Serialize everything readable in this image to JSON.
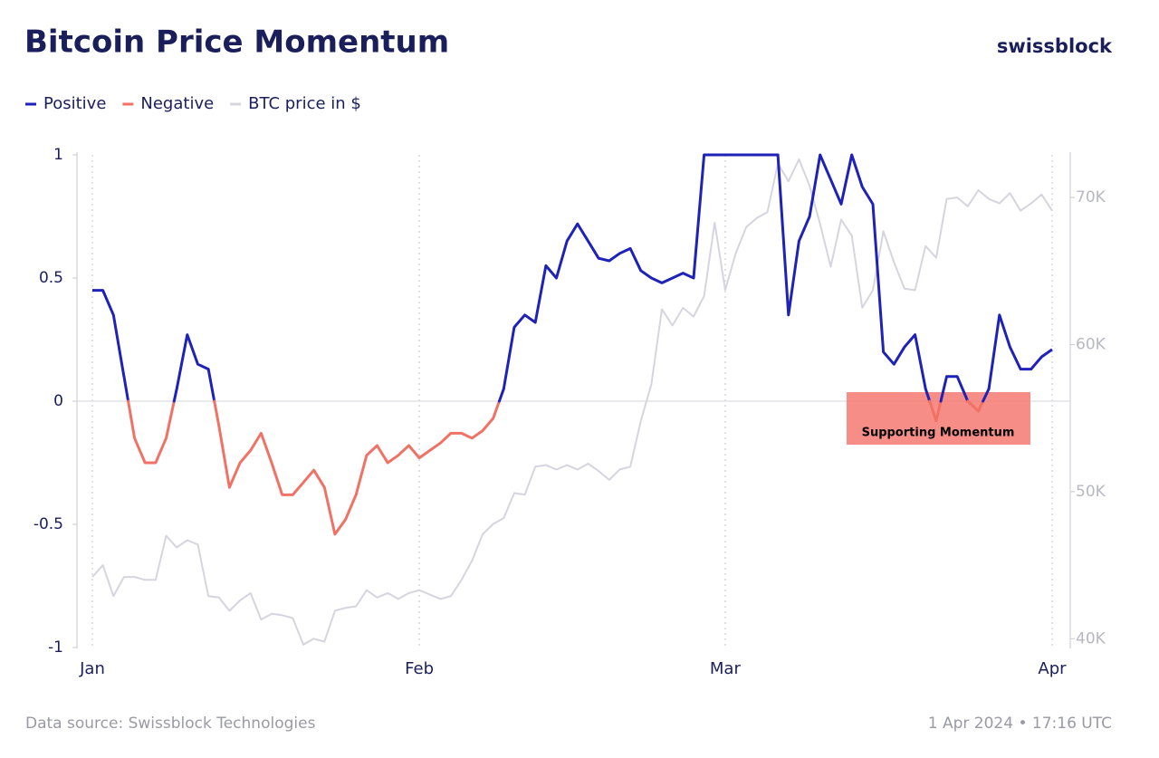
{
  "chart_data": {
    "type": "line",
    "title": "Bitcoin Price Momentum",
    "brand": "swissblock",
    "source": "Data source: Swissblock Technologies",
    "timestamp": "1 Apr 2024 • 17:16 UTC",
    "annotation": "Supporting Momentum",
    "categories": [
      "Jan",
      null,
      null,
      null,
      null,
      null,
      null,
      null,
      null,
      null,
      null,
      null,
      null,
      null,
      null,
      null,
      null,
      null,
      null,
      null,
      null,
      null,
      null,
      null,
      null,
      null,
      null,
      null,
      null,
      null,
      null,
      "Feb",
      null,
      null,
      null,
      null,
      null,
      null,
      null,
      null,
      null,
      null,
      null,
      null,
      null,
      null,
      null,
      null,
      null,
      null,
      null,
      null,
      null,
      null,
      null,
      null,
      null,
      null,
      null,
      null,
      "Mar",
      null,
      null,
      null,
      null,
      null,
      null,
      null,
      null,
      null,
      null,
      null,
      null,
      null,
      null,
      null,
      null,
      null,
      null,
      null,
      null,
      null,
      null,
      null,
      null,
      null,
      null,
      null,
      null,
      null,
      null,
      "Apr"
    ],
    "ylim": [
      -1,
      1
    ],
    "yticks": [
      -1,
      -0.5,
      0,
      0.5,
      1
    ],
    "y2lim": [
      39400,
      72900
    ],
    "y2ticks": [
      {
        "value": 40000,
        "label": "40K"
      },
      {
        "value": 50000,
        "label": "50K"
      },
      {
        "value": 60000,
        "label": "60K"
      },
      {
        "value": 70000,
        "label": "70K"
      }
    ],
    "legend": "top-left",
    "series": [
      {
        "name": "Positive",
        "color": "#1f22b8",
        "values": [
          0.45,
          0.45,
          0.35,
          0.1,
          null,
          null,
          null,
          null,
          0.05,
          0.27,
          0.15,
          0.13,
          null,
          null,
          null,
          null,
          null,
          null,
          null,
          null,
          null,
          null,
          null,
          null,
          null,
          null,
          null,
          null,
          null,
          null,
          null,
          null,
          null,
          null,
          null,
          null,
          null,
          null,
          null,
          0.05,
          0.3,
          0.35,
          0.32,
          0.55,
          0.5,
          0.65,
          0.72,
          0.65,
          0.58,
          0.57,
          0.6,
          0.62,
          0.53,
          0.5,
          0.48,
          0.5,
          0.52,
          0.5,
          1,
          1,
          1,
          1,
          1,
          1,
          1,
          1,
          0.35,
          0.65,
          0.75,
          1,
          0.9,
          0.8,
          1,
          0.87,
          0.8,
          0.2,
          0.15,
          0.22,
          0.27,
          0.05,
          null,
          0.1,
          0.1,
          0.0,
          null,
          0.05,
          0.35,
          0.22,
          0.13,
          0.13,
          0.18,
          0.21
        ]
      },
      {
        "name": "Negative",
        "color": "#f07266",
        "values": [
          null,
          null,
          null,
          null,
          -0.15,
          -0.25,
          -0.25,
          -0.15,
          null,
          null,
          null,
          null,
          -0.1,
          -0.35,
          -0.25,
          -0.2,
          -0.13,
          -0.25,
          -0.38,
          -0.38,
          -0.33,
          -0.28,
          -0.35,
          -0.54,
          -0.48,
          -0.38,
          -0.22,
          -0.18,
          -0.25,
          -0.22,
          -0.18,
          -0.23,
          -0.2,
          -0.17,
          -0.13,
          -0.13,
          -0.15,
          -0.12,
          -0.07,
          null,
          null,
          null,
          null,
          null,
          null,
          null,
          null,
          null,
          null,
          null,
          null,
          null,
          null,
          null,
          null,
          null,
          null,
          null,
          null,
          null,
          null,
          null,
          null,
          null,
          null,
          null,
          null,
          null,
          null,
          null,
          null,
          null,
          null,
          null,
          null,
          null,
          null,
          null,
          null,
          null,
          -0.08,
          null,
          null,
          null,
          -0.04,
          null,
          null,
          null,
          null,
          null,
          null,
          null
        ]
      },
      {
        "name": "BTC price in $",
        "color": "#d5d5e0",
        "axis": "y2",
        "values": [
          44200,
          45000,
          42900,
          44200,
          44200,
          44000,
          44000,
          47000,
          46200,
          46700,
          46400,
          42900,
          42800,
          41900,
          42600,
          43100,
          41300,
          41700,
          41600,
          41400,
          39600,
          40000,
          39800,
          41900,
          42100,
          42200,
          43300,
          42800,
          43100,
          42700,
          43100,
          43300,
          43000,
          42700,
          42900,
          44000,
          45300,
          47100,
          47800,
          48200,
          49900,
          49800,
          51700,
          51800,
          51500,
          51800,
          51500,
          51900,
          51400,
          50800,
          51500,
          51700,
          54800,
          57300,
          62400,
          61300,
          62500,
          61900,
          63300,
          68300,
          63700,
          66200,
          68000,
          68600,
          69000,
          72300,
          71100,
          72600,
          70800,
          68200,
          65300,
          68500,
          67400,
          62500,
          63700,
          67700,
          65600,
          63800,
          63700,
          66700,
          65900,
          69900,
          70000,
          69400,
          70500,
          69900,
          69600,
          70300,
          69100,
          69600,
          70200,
          69100
        ]
      }
    ]
  }
}
